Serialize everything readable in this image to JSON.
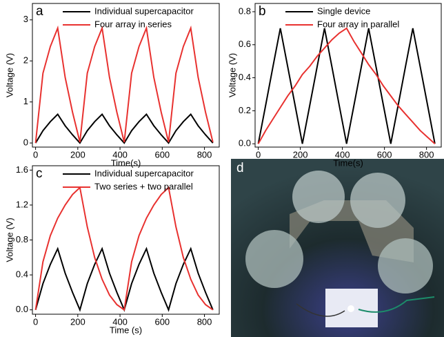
{
  "chart_data": [
    {
      "type": "line",
      "panel_label": "a",
      "xlabel": "Time(s)",
      "ylabel": "Voltage (V)",
      "x": [
        0,
        35,
        70,
        105,
        140,
        175,
        210,
        245,
        280,
        315,
        350,
        385,
        420,
        455,
        490,
        525,
        560,
        595,
        630,
        665,
        700,
        735,
        770,
        805,
        840
      ],
      "series": [
        {
          "name": "Individual supercapacitor",
          "color": "#000000",
          "values": [
            0,
            0.3,
            0.52,
            0.7,
            0.42,
            0.2,
            0,
            0.3,
            0.52,
            0.7,
            0.42,
            0.2,
            0,
            0.3,
            0.52,
            0.7,
            0.42,
            0.2,
            0,
            0.3,
            0.52,
            0.7,
            0.42,
            0.2,
            0
          ]
        },
        {
          "name": "Four array in series",
          "color": "#e8312f",
          "values": [
            0,
            1.7,
            2.35,
            2.8,
            1.6,
            0.75,
            0.02,
            1.7,
            2.35,
            2.8,
            1.6,
            0.75,
            0.02,
            1.7,
            2.35,
            2.8,
            1.6,
            0.75,
            0.02,
            1.7,
            2.35,
            2.8,
            1.6,
            0.75,
            0.02
          ]
        }
      ],
      "xlim": [
        -15,
        870
      ],
      "xticks": [
        0,
        200,
        400,
        600,
        800
      ],
      "ylim": [
        -0.1,
        3.4
      ],
      "yticks": [
        0,
        1,
        2,
        3
      ]
    },
    {
      "type": "line",
      "panel_label": "b",
      "xlabel": "Time(s)",
      "ylabel": "Voltage (V)",
      "x": [
        0,
        35,
        70,
        105,
        140,
        175,
        210,
        245,
        280,
        315,
        350,
        385,
        420,
        455,
        490,
        525,
        560,
        595,
        630,
        665,
        700,
        735,
        770,
        805,
        840
      ],
      "series": [
        {
          "name": "Single device",
          "color": "#000000",
          "values": [
            0,
            0.233,
            0.467,
            0.7,
            0.467,
            0.233,
            0,
            0.233,
            0.467,
            0.7,
            0.467,
            0.233,
            0,
            0.233,
            0.467,
            0.7,
            0.467,
            0.233,
            0,
            0.233,
            0.467,
            0.7,
            0.467,
            0.233,
            0
          ]
        },
        {
          "name": "Four array in parallel",
          "color": "#e8312f",
          "values": [
            0,
            0.08,
            0.15,
            0.22,
            0.29,
            0.35,
            0.42,
            0.47,
            0.53,
            0.58,
            0.63,
            0.67,
            0.7,
            0.62,
            0.55,
            0.48,
            0.42,
            0.35,
            0.29,
            0.23,
            0.18,
            0.13,
            0.08,
            0.04,
            0
          ]
        }
      ],
      "xlim": [
        -15,
        870
      ],
      "xticks": [
        0,
        200,
        400,
        600,
        800
      ],
      "ylim": [
        -0.02,
        0.85
      ],
      "yticks": [
        {
          "value": 0,
          "label": "0.0"
        },
        0.2,
        0.4,
        0.6,
        0.8
      ]
    },
    {
      "type": "line",
      "panel_label": "c",
      "xlabel": "Time (s)",
      "ylabel": "Voltage (V)",
      "x": [
        0,
        35,
        70,
        105,
        140,
        175,
        210,
        245,
        280,
        315,
        350,
        385,
        420,
        455,
        490,
        525,
        560,
        595,
        630,
        665,
        700,
        735,
        770,
        805,
        840
      ],
      "series": [
        {
          "name": "Individual supercapacitor",
          "color": "#000000",
          "values": [
            0,
            0.3,
            0.52,
            0.7,
            0.42,
            0.2,
            0,
            0.3,
            0.52,
            0.7,
            0.42,
            0.2,
            0,
            0.3,
            0.52,
            0.7,
            0.42,
            0.2,
            0,
            0.3,
            0.52,
            0.7,
            0.42,
            0.2,
            0
          ]
        },
        {
          "name": "Two series + two parallel",
          "color": "#e8312f",
          "values": [
            0,
            0.55,
            0.85,
            1.05,
            1.2,
            1.32,
            1.4,
            0.95,
            0.6,
            0.35,
            0.17,
            0.06,
            0,
            0.55,
            0.85,
            1.05,
            1.2,
            1.32,
            1.4,
            0.95,
            0.6,
            0.35,
            0.17,
            0.06,
            0
          ]
        }
      ],
      "xlim": [
        -15,
        870
      ],
      "xticks": [
        0,
        200,
        400,
        600,
        800
      ],
      "ylim": [
        -0.05,
        1.65
      ],
      "yticks": [
        {
          "value": 0,
          "label": "0.0"
        },
        0.4,
        0.8,
        1.2,
        1.6
      ]
    }
  ],
  "photo": {
    "label": "d"
  }
}
